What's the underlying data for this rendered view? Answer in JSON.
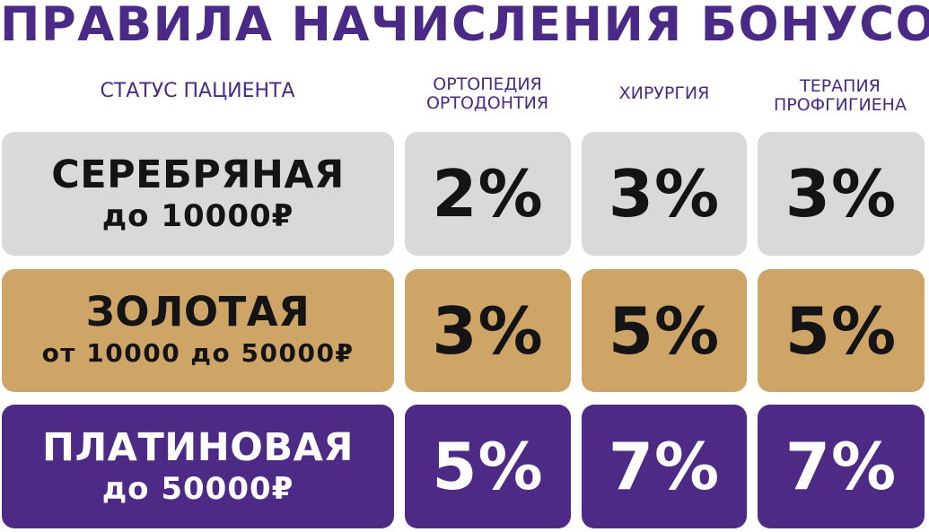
{
  "title": "ПРАВИЛА НАЧИСЛЕНИЯ БОНУСОВ",
  "headers": {
    "status": "СТАТУС ПАЦИЕНТА",
    "col1_line1": "ОРТОПЕДИЯ",
    "col1_line2": "ОРТОДОНТИЯ",
    "col2": "ХИРУРГИЯ",
    "col3_line1": "ТЕРАПИЯ",
    "col3_line2": "ПРОФГИГИЕНА"
  },
  "colors": {
    "title": "#4a2a86",
    "silver": "#d9d9d9",
    "gold": "#cfa567",
    "platinum": "#4d2a86"
  },
  "rows": [
    {
      "name": "СЕРЕБРЯНАЯ",
      "range": "до 10000₽",
      "ortho": "2%",
      "surgery": "3%",
      "therapy": "3%"
    },
    {
      "name": "ЗОЛОТАЯ",
      "range": "от 10000 до 50000₽",
      "ortho": "3%",
      "surgery": "5%",
      "therapy": "5%"
    },
    {
      "name": "ПЛАТИНОВАЯ",
      "range": "до 50000₽",
      "ortho": "5%",
      "surgery": "7%",
      "therapy": "7%"
    }
  ]
}
